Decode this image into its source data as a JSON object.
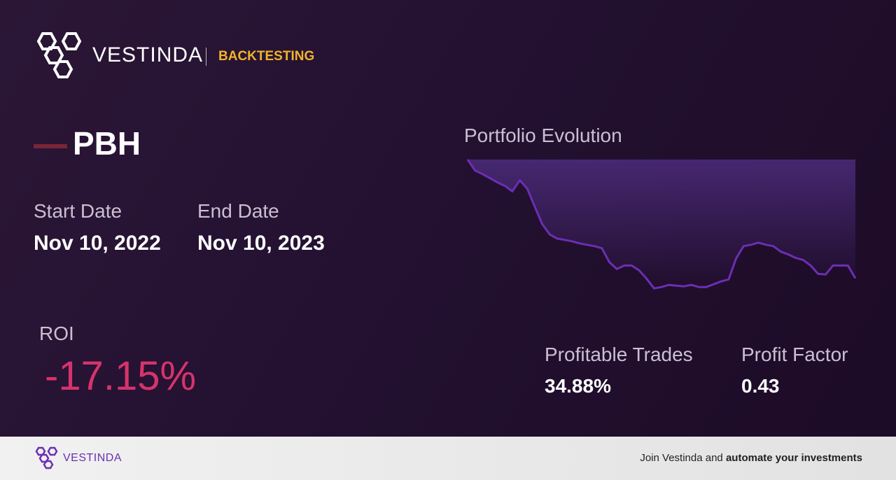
{
  "header": {
    "brand": "VESTINDA",
    "section": "BACKTESTING"
  },
  "stock": {
    "ticker": "PBH"
  },
  "dates": {
    "start_label": "Start Date",
    "start": "Nov 10, 2022",
    "end_label": "End Date",
    "end": "Nov 10, 2023"
  },
  "roi": {
    "label": "ROI",
    "value": "-17.15%"
  },
  "metrics": [
    {
      "label": "Profitable Trades",
      "value": "34.88%"
    },
    {
      "label": "Profit Factor",
      "value": "0.43"
    }
  ],
  "chart_data": {
    "type": "line",
    "title": "Portfolio Evolution",
    "color": "#6b2fb3",
    "ylim": [
      80,
      100
    ],
    "values": [
      100,
      98.4,
      97.9,
      97.3,
      96.7,
      96.2,
      95.4,
      97.0,
      95.8,
      93.2,
      90.7,
      89.2,
      88.6,
      88.4,
      88.2,
      87.9,
      87.7,
      87.5,
      87.2,
      85.2,
      84.2,
      84.7,
      84.7,
      84.0,
      82.8,
      81.4,
      81.6,
      81.9,
      81.8,
      81.7,
      81.9,
      81.6,
      81.6,
      82.0,
      82.4,
      82.7,
      85.7,
      87.5,
      87.7,
      88.0,
      87.7,
      87.5,
      86.7,
      86.3,
      85.8,
      85.5,
      84.7,
      83.5,
      83.4,
      84.7,
      84.7,
      84.7,
      82.85
    ]
  },
  "footer": {
    "brand": "VESTINDA",
    "cta_plain": "Join Vestinda and",
    "cta_bold": "automate your investments"
  }
}
